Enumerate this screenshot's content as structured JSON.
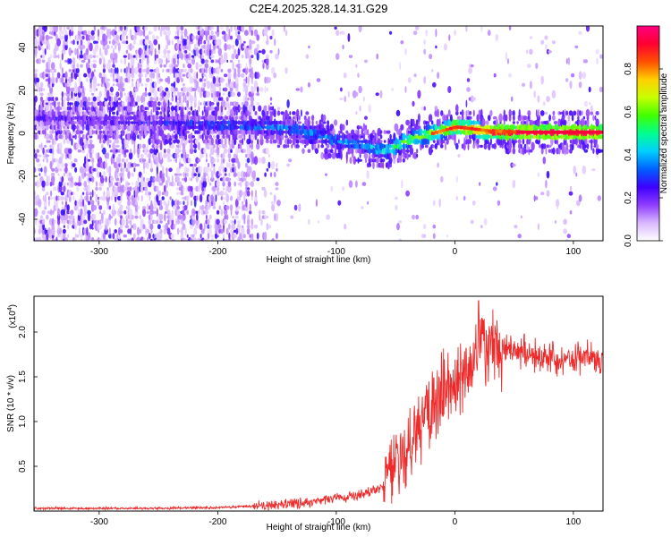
{
  "title": "C2E4.2025.328.14.31.G29",
  "colors": {
    "snr_line": "#ee2b2b",
    "background": "#ffffff"
  },
  "chart_data": [
    {
      "type": "heatmap",
      "name": "spectrogram",
      "xlabel": "Height of straight line (km)",
      "ylabel": "Frequency (Hz)",
      "xlim": [
        -355,
        125
      ],
      "ylim": [
        -50,
        50
      ],
      "xticks": [
        -300,
        -200,
        -100,
        0,
        100
      ],
      "yticks": [
        -40,
        -20,
        0,
        20,
        40
      ],
      "colorbar": {
        "label": "Normalized spectral amplitude",
        "range": [
          0,
          1
        ],
        "ticks": [
          0.0,
          0.2,
          0.4,
          0.6,
          0.8
        ],
        "colors": [
          "#ffffff",
          "#d9b8ff",
          "#8f3cff",
          "#3d00ff",
          "#0060ff",
          "#00d0ff",
          "#00ff90",
          "#40ff00",
          "#c8ff00",
          "#ffd000",
          "#ff5000",
          "#ff0030",
          "#ff0080"
        ]
      },
      "signal_track": [
        {
          "x": -355,
          "freq": 8,
          "amp": 0.22
        },
        {
          "x": -300,
          "freq": 6,
          "amp": 0.22
        },
        {
          "x": -250,
          "freq": 5,
          "amp": 0.25
        },
        {
          "x": -200,
          "freq": 4,
          "amp": 0.32
        },
        {
          "x": -150,
          "freq": 3,
          "amp": 0.36
        },
        {
          "x": -120,
          "freq": 0,
          "amp": 0.38
        },
        {
          "x": -100,
          "freq": -3,
          "amp": 0.38
        },
        {
          "x": -80,
          "freq": -5,
          "amp": 0.4
        },
        {
          "x": -60,
          "freq": -8,
          "amp": 0.45
        },
        {
          "x": -50,
          "freq": -6,
          "amp": 0.55
        },
        {
          "x": -40,
          "freq": -3,
          "amp": 0.6
        },
        {
          "x": -20,
          "freq": 0,
          "amp": 0.68
        },
        {
          "x": 0,
          "freq": 3,
          "amp": 0.8
        },
        {
          "x": 30,
          "freq": 1,
          "amp": 0.9
        },
        {
          "x": 60,
          "freq": 0.5,
          "amp": 0.95
        },
        {
          "x": 125,
          "freq": 0.5,
          "amp": 0.95
        }
      ]
    },
    {
      "type": "line",
      "name": "snr",
      "xlabel": "Height of straight line (km)",
      "ylabel": "SNR (10 * v/v)",
      "y_multiplier": "(x10",
      "y_multiplier_exp": "4",
      "y_multiplier_close": ")",
      "xlim": [
        -355,
        125
      ],
      "ylim": [
        0,
        2.4
      ],
      "xticks": [
        -300,
        -200,
        -100,
        0,
        100
      ],
      "yticks": [
        0.5,
        1.0,
        1.5,
        2.0
      ],
      "trend": [
        {
          "x": -355,
          "y": 0.03
        },
        {
          "x": -250,
          "y": 0.03
        },
        {
          "x": -200,
          "y": 0.04
        },
        {
          "x": -160,
          "y": 0.06
        },
        {
          "x": -120,
          "y": 0.1
        },
        {
          "x": -100,
          "y": 0.14
        },
        {
          "x": -80,
          "y": 0.18
        },
        {
          "x": -60,
          "y": 0.28
        },
        {
          "x": -50,
          "y": 0.45
        },
        {
          "x": -40,
          "y": 0.7
        },
        {
          "x": -30,
          "y": 0.95
        },
        {
          "x": -20,
          "y": 1.15
        },
        {
          "x": -10,
          "y": 1.3
        },
        {
          "x": 0,
          "y": 1.45
        },
        {
          "x": 10,
          "y": 1.62
        },
        {
          "x": 20,
          "y": 1.8
        },
        {
          "x": 40,
          "y": 1.82
        },
        {
          "x": 60,
          "y": 1.76
        },
        {
          "x": 80,
          "y": 1.72
        },
        {
          "x": 100,
          "y": 1.72
        },
        {
          "x": 125,
          "y": 1.7
        }
      ],
      "peak": {
        "x": 20,
        "y": 2.35
      }
    }
  ]
}
